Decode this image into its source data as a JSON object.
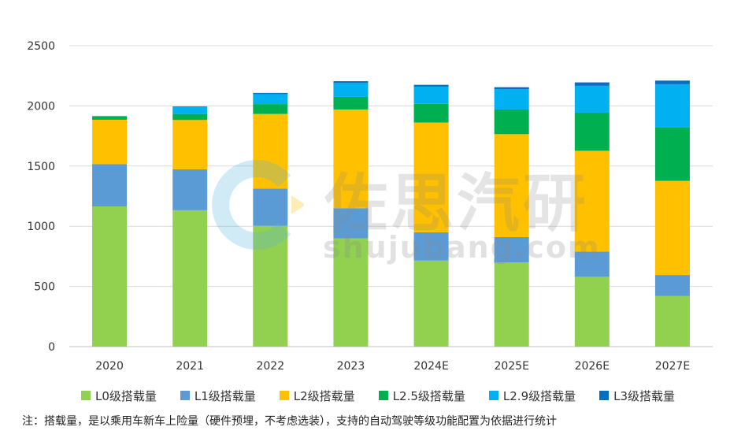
{
  "chart_data": {
    "type": "bar",
    "stacked": true,
    "categories": [
      "2020",
      "2021",
      "2022",
      "2023",
      "2024E",
      "2025E",
      "2026E",
      "2027E"
    ],
    "series": [
      {
        "name": "L0级搭载量",
        "color": "#92D050",
        "values": [
          1165,
          1133,
          1003,
          900,
          715,
          700,
          580,
          420
        ]
      },
      {
        "name": "L1级搭载量",
        "color": "#5B9BD5",
        "values": [
          350,
          340,
          310,
          250,
          235,
          210,
          210,
          175
        ]
      },
      {
        "name": "L2级搭载量",
        "color": "#FFC000",
        "values": [
          370,
          410,
          620,
          820,
          912,
          855,
          837,
          782
        ]
      },
      {
        "name": "L2.5级搭载量",
        "color": "#00B050",
        "values": [
          30,
          50,
          82,
          105,
          155,
          205,
          317,
          445
        ]
      },
      {
        "name": "L2.9级搭载量",
        "color": "#00B0F0",
        "values": [
          0,
          57,
          83,
          115,
          143,
          170,
          223,
          358
        ]
      },
      {
        "name": "L3级搭载量",
        "color": "#0070C0",
        "values": [
          0,
          5,
          10,
          15,
          15,
          15,
          28,
          30
        ]
      }
    ],
    "ylim": [
      0,
      2500
    ],
    "yticks": [
      0,
      500,
      1000,
      1500,
      2000,
      2500
    ],
    "grid": true,
    "legend": "bottom"
  },
  "watermark": {
    "name": "佐思汽研",
    "url": "shujubang.com"
  },
  "note": "注：搭载量，是以乘用车新车上险量（硬件预埋，不考虑选装），支持的自动驾驶等级功能配置为依据进行统计"
}
